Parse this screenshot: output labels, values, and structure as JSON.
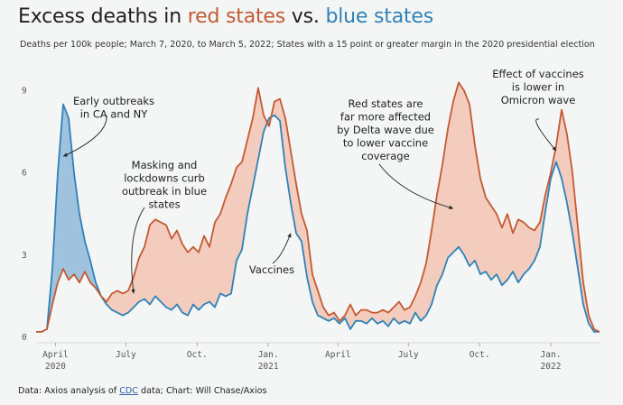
{
  "header": {
    "title_prefix": "Excess deaths in ",
    "title_red": "red states",
    "title_mid": " vs. ",
    "title_blue": "blue states",
    "subtitle": "Deaths per 100k people; March 7, 2020, to March 5, 2022; States with a 15 point or greater margin in the 2020 presidential election"
  },
  "footer": {
    "prefix": "Data: Axios analysis of ",
    "link": "CDC",
    "suffix": " data; Chart: Will Chase/Axios"
  },
  "colors": {
    "red": "#c45a34",
    "blue": "#2f82b8",
    "fill_red": "#f2c4b4",
    "fill_blue": "#8fbadb",
    "background": "#f4f5f5"
  },
  "chart_data": {
    "type": "area",
    "title": "Excess deaths in red states vs. blue states",
    "y_ticks": [
      0,
      3,
      6,
      9
    ],
    "ylim": [
      0,
      10.2
    ],
    "grid": false,
    "x_ticks": [
      {
        "date": "2020-04-01",
        "label": "April",
        "year": "2020"
      },
      {
        "date": "2020-07-01",
        "label": "July",
        "year": ""
      },
      {
        "date": "2020-10-01",
        "label": "Oct.",
        "year": ""
      },
      {
        "date": "2021-01-01",
        "label": "Jan.",
        "year": "2021"
      },
      {
        "date": "2021-04-01",
        "label": "April",
        "year": ""
      },
      {
        "date": "2021-07-01",
        "label": "July",
        "year": ""
      },
      {
        "date": "2021-10-01",
        "label": "Oct.",
        "year": ""
      },
      {
        "date": "2022-01-01",
        "label": "Jan.",
        "year": "2022"
      }
    ],
    "x_range": [
      "2020-03-07",
      "2022-03-05"
    ],
    "series": [
      {
        "name": "red states",
        "color": "#c45a34",
        "points": [
          [
            "2020-03-07",
            0.2
          ],
          [
            "2020-03-14",
            0.2
          ],
          [
            "2020-03-21",
            0.3
          ],
          [
            "2020-03-28",
            1.2
          ],
          [
            "2020-04-04",
            2.0
          ],
          [
            "2020-04-11",
            2.5
          ],
          [
            "2020-04-18",
            2.1
          ],
          [
            "2020-04-25",
            2.3
          ],
          [
            "2020-05-02",
            2.0
          ],
          [
            "2020-05-09",
            2.4
          ],
          [
            "2020-05-16",
            2.0
          ],
          [
            "2020-05-23",
            1.8
          ],
          [
            "2020-05-30",
            1.5
          ],
          [
            "2020-06-06",
            1.3
          ],
          [
            "2020-06-13",
            1.6
          ],
          [
            "2020-06-20",
            1.7
          ],
          [
            "2020-06-27",
            1.6
          ],
          [
            "2020-07-04",
            1.7
          ],
          [
            "2020-07-11",
            2.2
          ],
          [
            "2020-07-18",
            2.9
          ],
          [
            "2020-07-25",
            3.3
          ],
          [
            "2020-08-01",
            4.1
          ],
          [
            "2020-08-08",
            4.3
          ],
          [
            "2020-08-15",
            4.2
          ],
          [
            "2020-08-22",
            4.1
          ],
          [
            "2020-08-29",
            3.6
          ],
          [
            "2020-09-05",
            3.9
          ],
          [
            "2020-09-12",
            3.4
          ],
          [
            "2020-09-19",
            3.1
          ],
          [
            "2020-09-26",
            3.3
          ],
          [
            "2020-10-03",
            3.1
          ],
          [
            "2020-10-10",
            3.7
          ],
          [
            "2020-10-17",
            3.3
          ],
          [
            "2020-10-24",
            4.2
          ],
          [
            "2020-10-31",
            4.5
          ],
          [
            "2020-11-07",
            5.1
          ],
          [
            "2020-11-14",
            5.6
          ],
          [
            "2020-11-21",
            6.2
          ],
          [
            "2020-11-28",
            6.4
          ],
          [
            "2020-12-05",
            7.2
          ],
          [
            "2020-12-12",
            8.0
          ],
          [
            "2020-12-19",
            9.1
          ],
          [
            "2020-12-26",
            8.1
          ],
          [
            "2021-01-02",
            7.7
          ],
          [
            "2021-01-09",
            8.6
          ],
          [
            "2021-01-16",
            8.7
          ],
          [
            "2021-01-23",
            8.0
          ],
          [
            "2021-01-30",
            6.8
          ],
          [
            "2021-02-06",
            5.6
          ],
          [
            "2021-02-13",
            4.5
          ],
          [
            "2021-02-20",
            3.9
          ],
          [
            "2021-02-27",
            2.3
          ],
          [
            "2021-03-06",
            1.7
          ],
          [
            "2021-03-13",
            1.1
          ],
          [
            "2021-03-20",
            0.8
          ],
          [
            "2021-03-27",
            0.9
          ],
          [
            "2021-04-03",
            0.6
          ],
          [
            "2021-04-10",
            0.8
          ],
          [
            "2021-04-17",
            1.2
          ],
          [
            "2021-04-24",
            0.8
          ],
          [
            "2021-05-01",
            1.0
          ],
          [
            "2021-05-08",
            1.0
          ],
          [
            "2021-05-15",
            0.9
          ],
          [
            "2021-05-22",
            0.9
          ],
          [
            "2021-05-29",
            1.0
          ],
          [
            "2021-06-05",
            0.9
          ],
          [
            "2021-06-12",
            1.1
          ],
          [
            "2021-06-19",
            1.3
          ],
          [
            "2021-06-26",
            1.0
          ],
          [
            "2021-07-03",
            1.1
          ],
          [
            "2021-07-10",
            1.5
          ],
          [
            "2021-07-17",
            2.0
          ],
          [
            "2021-07-24",
            2.7
          ],
          [
            "2021-07-31",
            3.9
          ],
          [
            "2021-08-07",
            5.2
          ],
          [
            "2021-08-14",
            6.3
          ],
          [
            "2021-08-21",
            7.6
          ],
          [
            "2021-08-28",
            8.6
          ],
          [
            "2021-09-04",
            9.3
          ],
          [
            "2021-09-11",
            9.0
          ],
          [
            "2021-09-18",
            8.5
          ],
          [
            "2021-09-25",
            7.0
          ],
          [
            "2021-10-02",
            5.8
          ],
          [
            "2021-10-09",
            5.1
          ],
          [
            "2021-10-16",
            4.8
          ],
          [
            "2021-10-23",
            4.5
          ],
          [
            "2021-10-30",
            4.0
          ],
          [
            "2021-11-06",
            4.5
          ],
          [
            "2021-11-13",
            3.8
          ],
          [
            "2021-11-20",
            4.3
          ],
          [
            "2021-11-27",
            4.2
          ],
          [
            "2021-12-04",
            4.0
          ],
          [
            "2021-12-11",
            3.9
          ],
          [
            "2021-12-18",
            4.2
          ],
          [
            "2021-12-25",
            5.2
          ],
          [
            "2022-01-01",
            6.0
          ],
          [
            "2022-01-08",
            7.0
          ],
          [
            "2022-01-15",
            8.3
          ],
          [
            "2022-01-22",
            7.4
          ],
          [
            "2022-01-29",
            6.0
          ],
          [
            "2022-02-05",
            4.0
          ],
          [
            "2022-02-12",
            2.0
          ],
          [
            "2022-02-19",
            0.8
          ],
          [
            "2022-02-26",
            0.3
          ],
          [
            "2022-03-05",
            0.2
          ]
        ]
      },
      {
        "name": "blue states",
        "color": "#2f82b8",
        "points": [
          [
            "2020-03-07",
            0.2
          ],
          [
            "2020-03-14",
            0.2
          ],
          [
            "2020-03-21",
            0.3
          ],
          [
            "2020-03-28",
            2.5
          ],
          [
            "2020-04-04",
            6.0
          ],
          [
            "2020-04-11",
            8.5
          ],
          [
            "2020-04-18",
            8.0
          ],
          [
            "2020-04-25",
            6.0
          ],
          [
            "2020-05-02",
            4.5
          ],
          [
            "2020-05-09",
            3.5
          ],
          [
            "2020-05-16",
            2.8
          ],
          [
            "2020-05-23",
            2.0
          ],
          [
            "2020-05-30",
            1.5
          ],
          [
            "2020-06-06",
            1.2
          ],
          [
            "2020-06-13",
            1.0
          ],
          [
            "2020-06-20",
            0.9
          ],
          [
            "2020-06-27",
            0.8
          ],
          [
            "2020-07-04",
            0.9
          ],
          [
            "2020-07-11",
            1.1
          ],
          [
            "2020-07-18",
            1.3
          ],
          [
            "2020-07-25",
            1.4
          ],
          [
            "2020-08-01",
            1.2
          ],
          [
            "2020-08-08",
            1.5
          ],
          [
            "2020-08-15",
            1.3
          ],
          [
            "2020-08-22",
            1.1
          ],
          [
            "2020-08-29",
            1.0
          ],
          [
            "2020-09-05",
            1.2
          ],
          [
            "2020-09-12",
            0.9
          ],
          [
            "2020-09-19",
            0.8
          ],
          [
            "2020-09-26",
            1.2
          ],
          [
            "2020-10-03",
            1.0
          ],
          [
            "2020-10-10",
            1.2
          ],
          [
            "2020-10-17",
            1.3
          ],
          [
            "2020-10-24",
            1.1
          ],
          [
            "2020-10-31",
            1.6
          ],
          [
            "2020-11-07",
            1.5
          ],
          [
            "2020-11-14",
            1.6
          ],
          [
            "2020-11-21",
            2.8
          ],
          [
            "2020-11-28",
            3.2
          ],
          [
            "2020-12-05",
            4.5
          ],
          [
            "2020-12-12",
            5.5
          ],
          [
            "2020-12-19",
            6.5
          ],
          [
            "2020-12-26",
            7.5
          ],
          [
            "2021-01-02",
            8.0
          ],
          [
            "2021-01-09",
            8.1
          ],
          [
            "2021-01-16",
            7.9
          ],
          [
            "2021-01-23",
            6.2
          ],
          [
            "2021-01-30",
            4.9
          ],
          [
            "2021-02-06",
            3.8
          ],
          [
            "2021-02-13",
            3.5
          ],
          [
            "2021-02-20",
            2.2
          ],
          [
            "2021-02-27",
            1.3
          ],
          [
            "2021-03-06",
            0.8
          ],
          [
            "2021-03-13",
            0.7
          ],
          [
            "2021-03-20",
            0.6
          ],
          [
            "2021-03-27",
            0.7
          ],
          [
            "2021-04-03",
            0.5
          ],
          [
            "2021-04-10",
            0.7
          ],
          [
            "2021-04-17",
            0.3
          ],
          [
            "2021-04-24",
            0.6
          ],
          [
            "2021-05-01",
            0.6
          ],
          [
            "2021-05-08",
            0.5
          ],
          [
            "2021-05-15",
            0.7
          ],
          [
            "2021-05-22",
            0.5
          ],
          [
            "2021-05-29",
            0.6
          ],
          [
            "2021-06-05",
            0.4
          ],
          [
            "2021-06-12",
            0.7
          ],
          [
            "2021-06-19",
            0.5
          ],
          [
            "2021-06-26",
            0.6
          ],
          [
            "2021-07-03",
            0.5
          ],
          [
            "2021-07-10",
            0.9
          ],
          [
            "2021-07-17",
            0.6
          ],
          [
            "2021-07-24",
            0.8
          ],
          [
            "2021-07-31",
            1.2
          ],
          [
            "2021-08-07",
            1.9
          ],
          [
            "2021-08-14",
            2.3
          ],
          [
            "2021-08-21",
            2.9
          ],
          [
            "2021-08-28",
            3.1
          ],
          [
            "2021-09-04",
            3.3
          ],
          [
            "2021-09-11",
            3.0
          ],
          [
            "2021-09-18",
            2.6
          ],
          [
            "2021-09-25",
            2.8
          ],
          [
            "2021-10-02",
            2.3
          ],
          [
            "2021-10-09",
            2.4
          ],
          [
            "2021-10-16",
            2.1
          ],
          [
            "2021-10-23",
            2.3
          ],
          [
            "2021-10-30",
            1.9
          ],
          [
            "2021-11-06",
            2.1
          ],
          [
            "2021-11-13",
            2.4
          ],
          [
            "2021-11-20",
            2.0
          ],
          [
            "2021-11-27",
            2.3
          ],
          [
            "2021-12-04",
            2.5
          ],
          [
            "2021-12-11",
            2.8
          ],
          [
            "2021-12-18",
            3.3
          ],
          [
            "2021-12-25",
            4.6
          ],
          [
            "2022-01-01",
            5.8
          ],
          [
            "2022-01-08",
            6.4
          ],
          [
            "2022-01-15",
            5.8
          ],
          [
            "2022-01-22",
            4.9
          ],
          [
            "2022-01-29",
            3.8
          ],
          [
            "2022-02-05",
            2.5
          ],
          [
            "2022-02-12",
            1.2
          ],
          [
            "2022-02-19",
            0.5
          ],
          [
            "2022-02-26",
            0.2
          ],
          [
            "2022-03-05",
            0.2
          ]
        ]
      }
    ],
    "annotations": [
      {
        "lines": [
          "Early outbreaks",
          "in CA and NY"
        ],
        "target": [
          "2020-04-11",
          6.6
        ]
      },
      {
        "lines": [
          "Masking and",
          "lockdowns curb",
          "outbreak in blue",
          "states"
        ],
        "target": [
          "2020-07-11",
          1.6
        ]
      },
      {
        "lines": [
          "Vaccines"
        ],
        "target": [
          "2021-01-30",
          3.8
        ]
      },
      {
        "lines": [
          "Red states are",
          "far more affected",
          "by Delta wave due",
          "to lower vaccine",
          "coverage"
        ],
        "target": [
          "2021-08-28",
          4.7
        ]
      },
      {
        "lines": [
          "Effect of vaccines",
          "is lower in",
          "Omicron wave"
        ],
        "target": [
          "2022-01-08",
          6.8
        ]
      }
    ]
  }
}
